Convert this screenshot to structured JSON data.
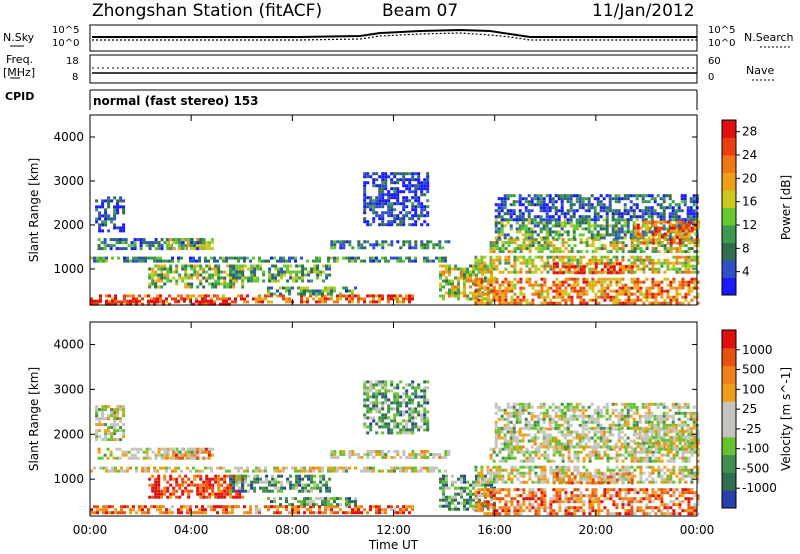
{
  "header": {
    "station": "Zhongshan Station (fitACF)",
    "beam": "Beam 07",
    "date": "11/Jan/2012"
  },
  "strip": {
    "nsky_label": "N.Sky",
    "nsearch_label": "N.Search",
    "freq_label_1": "Freq.",
    "freq_label_2": "[MHz]",
    "nave_label": "Nave",
    "cpid_label": "CPID",
    "noise_left_ticks": [
      "10^5",
      "10^0"
    ],
    "noise_right_ticks": [
      "10^5",
      "10^0"
    ],
    "freq_left_ticks": [
      "18",
      "8"
    ],
    "freq_right_ticks": [
      "60",
      "0"
    ],
    "mode_text": "normal (fast stereo) 153"
  },
  "chart_data": [
    {
      "type": "heatmap",
      "title": "",
      "variable": "Power",
      "xlabel": "",
      "ylabel": "Slant Range [km]",
      "x_ticks": [
        "00:00",
        "04:00",
        "08:00",
        "12:00",
        "16:00",
        "20:00",
        "00:00"
      ],
      "y_ticks": [
        "1000",
        "2000",
        "3000",
        "4000"
      ],
      "xlim_hours": [
        0,
        24
      ],
      "ylim_km": [
        180,
        4500
      ],
      "colorbar": {
        "label": "Power [dB]",
        "ticks": [
          "4",
          "8",
          "12",
          "16",
          "20",
          "24",
          "28"
        ],
        "range": [
          0,
          30
        ],
        "colors": [
          "#1a1aff",
          "#3050c8",
          "#2f6e4e",
          "#3c9a50",
          "#64c832",
          "#c8c81e",
          "#f0a018",
          "#f07814",
          "#e84010",
          "#e01010"
        ]
      },
      "regions": [
        {
          "t": [
            0.0,
            12.7
          ],
          "r": [
            240,
            420
          ],
          "level": 0.8
        },
        {
          "t": [
            0.0,
            5.5
          ],
          "r": [
            230,
            300
          ],
          "level": 0.98
        },
        {
          "t": [
            0.0,
            14.0
          ],
          "r": [
            1160,
            1280
          ],
          "level": 0.3
        },
        {
          "t": [
            0.3,
            4.5
          ],
          "r": [
            1450,
            1700
          ],
          "level": 0.22
        },
        {
          "t": [
            0.2,
            1.3
          ],
          "r": [
            1850,
            2650
          ],
          "level": 0.12
        },
        {
          "t": [
            2.3,
            6.0
          ],
          "r": [
            600,
            1100
          ],
          "level": 0.45
        },
        {
          "t": [
            3.0,
            4.8
          ],
          "r": [
            1450,
            1700
          ],
          "level": 0.45
        },
        {
          "t": [
            5.5,
            9.5
          ],
          "r": [
            700,
            1100
          ],
          "level": 0.35
        },
        {
          "t": [
            7.0,
            10.5
          ],
          "r": [
            420,
            600
          ],
          "level": 0.3
        },
        {
          "t": [
            9.5,
            14.2
          ],
          "r": [
            1500,
            1650
          ],
          "level": 0.22
        },
        {
          "t": [
            10.8,
            13.4
          ],
          "r": [
            2000,
            3200
          ],
          "level": 0.1
        },
        {
          "t": [
            13.8,
            16.0
          ],
          "r": [
            300,
            1100
          ],
          "level": 0.5
        },
        {
          "t": [
            15.2,
            24.0
          ],
          "r": [
            250,
            800
          ],
          "level": 0.72
        },
        {
          "t": [
            15.2,
            24.0
          ],
          "r": [
            900,
            1300
          ],
          "level": 0.55
        },
        {
          "t": [
            15.8,
            24.0
          ],
          "r": [
            1400,
            1700
          ],
          "level": 0.5
        },
        {
          "t": [
            16.0,
            24.0
          ],
          "r": [
            1700,
            2150
          ],
          "level": 0.35
        },
        {
          "t": [
            16.0,
            24.0
          ],
          "r": [
            2150,
            2700
          ],
          "level": 0.18
        },
        {
          "t": [
            21.5,
            24.0
          ],
          "r": [
            1600,
            2100
          ],
          "level": 0.75
        },
        {
          "t": [
            18.3,
            21.5
          ],
          "r": [
            900,
            1150
          ],
          "level": 0.85
        }
      ]
    },
    {
      "type": "heatmap",
      "title": "",
      "variable": "Velocity",
      "xlabel": "Time UT",
      "ylabel": "Slant Range [km]",
      "x_ticks": [
        "00:00",
        "04:00",
        "08:00",
        "12:00",
        "16:00",
        "20:00",
        "00:00"
      ],
      "y_ticks": [
        "1000",
        "2000",
        "3000",
        "4000"
      ],
      "xlim_hours": [
        0,
        24
      ],
      "ylim_km": [
        180,
        4500
      ],
      "colorbar": {
        "label": "Velocity [m s^-1]",
        "ticks": [
          "1000",
          "500",
          "100",
          "25",
          "-25",
          "-100",
          "-500",
          "-1000"
        ],
        "colors": [
          "#2a3fae",
          "#2f6e4e",
          "#3f8f4f",
          "#66c22e",
          "#c4c4bc",
          "#c4c4bc",
          "#f0a018",
          "#f08018",
          "#e85010",
          "#e01010"
        ]
      },
      "regions": [
        {
          "t": [
            0.0,
            12.7
          ],
          "r": [
            240,
            420
          ],
          "level": 0.8
        },
        {
          "t": [
            0.0,
            14.0
          ],
          "r": [
            1160,
            1280
          ],
          "level": 0.52
        },
        {
          "t": [
            0.3,
            4.5
          ],
          "r": [
            1450,
            1700
          ],
          "level": 0.5
        },
        {
          "t": [
            0.2,
            1.3
          ],
          "r": [
            1850,
            2650
          ],
          "level": 0.48
        },
        {
          "t": [
            2.3,
            6.0
          ],
          "r": [
            600,
            1100
          ],
          "level": 0.9
        },
        {
          "t": [
            3.0,
            4.8
          ],
          "r": [
            1450,
            1700
          ],
          "level": 0.7
        },
        {
          "t": [
            5.5,
            9.5
          ],
          "r": [
            700,
            1100
          ],
          "level": 0.25
        },
        {
          "t": [
            7.0,
            10.5
          ],
          "r": [
            420,
            600
          ],
          "level": 0.3
        },
        {
          "t": [
            9.5,
            14.2
          ],
          "r": [
            1500,
            1650
          ],
          "level": 0.5
        },
        {
          "t": [
            10.8,
            13.4
          ],
          "r": [
            2000,
            3200
          ],
          "level": 0.3
        },
        {
          "t": [
            13.8,
            16.0
          ],
          "r": [
            300,
            1100
          ],
          "level": 0.28
        },
        {
          "t": [
            15.2,
            24.0
          ],
          "r": [
            250,
            800
          ],
          "level": 0.75
        },
        {
          "t": [
            15.2,
            24.0
          ],
          "r": [
            900,
            1300
          ],
          "level": 0.5
        },
        {
          "t": [
            15.8,
            24.0
          ],
          "r": [
            1400,
            1700
          ],
          "level": 0.5
        },
        {
          "t": [
            16.0,
            24.0
          ],
          "r": [
            1700,
            2150
          ],
          "level": 0.5
        },
        {
          "t": [
            16.0,
            24.0
          ],
          "r": [
            2150,
            2700
          ],
          "level": 0.45
        },
        {
          "t": [
            21.5,
            24.0
          ],
          "r": [
            1600,
            2100
          ],
          "level": 0.5
        },
        {
          "t": [
            18.3,
            21.5
          ],
          "r": [
            900,
            1150
          ],
          "level": 0.7
        }
      ]
    }
  ]
}
